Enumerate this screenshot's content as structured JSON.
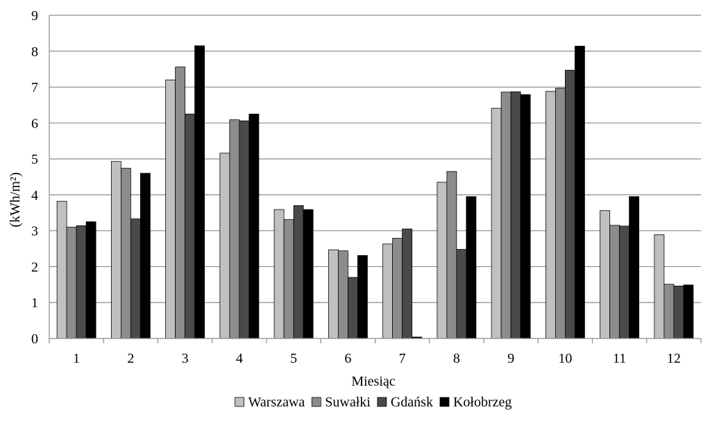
{
  "chart_data": {
    "type": "bar",
    "xlabel": "Miesiąc",
    "ylabel": "(kWh/m²)",
    "ylim": [
      0,
      9
    ],
    "yticks": [
      "0",
      "1",
      "2",
      "3",
      "4",
      "5",
      "6",
      "7",
      "8",
      "9"
    ],
    "categories": [
      "1",
      "2",
      "3",
      "4",
      "5",
      "6",
      "7",
      "8",
      "9",
      "10",
      "11",
      "12"
    ],
    "grid": true,
    "legend_position": "bottom",
    "series": [
      {
        "name": "Warszawa",
        "color": "#c0c0c0",
        "values": [
          3.82,
          4.93,
          7.2,
          5.16,
          3.59,
          2.47,
          2.63,
          4.35,
          6.41,
          6.88,
          3.56,
          2.89
        ]
      },
      {
        "name": "Suwałki",
        "color": "#8c8c8c",
        "values": [
          3.1,
          4.74,
          7.56,
          6.09,
          3.31,
          2.44,
          2.79,
          4.65,
          6.86,
          6.97,
          3.15,
          1.51
        ]
      },
      {
        "name": "Gdańsk",
        "color": "#4a4a4a",
        "values": [
          3.14,
          3.33,
          6.25,
          6.06,
          3.7,
          1.7,
          3.05,
          2.48,
          6.87,
          7.47,
          3.13,
          1.46
        ]
      },
      {
        "name": "Kołobrzeg",
        "color": "#000000",
        "values": [
          3.25,
          4.6,
          8.15,
          6.25,
          3.59,
          2.31,
          0.04,
          3.95,
          6.79,
          8.14,
          3.95,
          1.49
        ]
      }
    ]
  }
}
